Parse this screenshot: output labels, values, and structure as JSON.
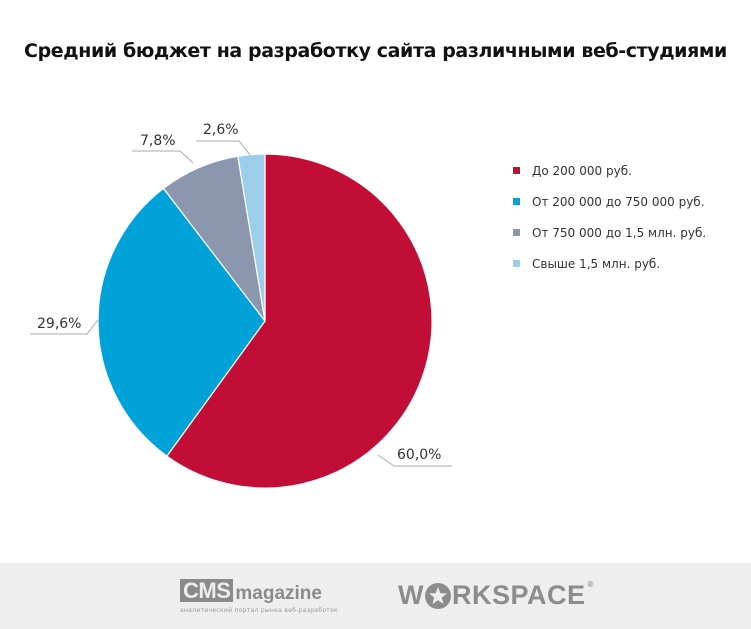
{
  "title": "Средний бюджет на разработку сайта различными веб-студиями",
  "chart_data": {
    "type": "pie",
    "title": "Средний бюджет на разработку сайта различными веб-студиями",
    "categories": [
      "До 200 000 руб.",
      "От 200 000 до 750 000 руб.",
      "От 750 000 до 1,5 млн. руб.",
      "Свыше 1,5 млн. руб."
    ],
    "values": [
      60.0,
      29.6,
      7.8,
      2.6
    ],
    "labels": [
      "60,0%",
      "29,6%",
      "7,8%",
      "2,6%"
    ],
    "colors": [
      "#c20e37",
      "#00a3d9",
      "#8a97ae",
      "#9ccde9"
    ],
    "start_angle": "12 o'clock",
    "direction": "clockwise",
    "legend_position": "right"
  },
  "legend": [
    {
      "label": "До 200 000 руб.",
      "color": "#c20e37"
    },
    {
      "label": "От 200 000 до 750 000 руб.",
      "color": "#00a3d9"
    },
    {
      "label": "От 750 000 до 1,5 млн. руб.",
      "color": "#8a97ae"
    },
    {
      "label": "Свыше 1,5 млн. руб.",
      "color": "#9ccde9"
    }
  ],
  "footer": {
    "cms_logo_box": "CMS",
    "cms_logo_text": "magazine",
    "cms_tagline": "аналитический портал рынка веб-разработок",
    "workspace_pre": "W",
    "workspace_post": "RKSPACE",
    "workspace_reg": "®"
  }
}
